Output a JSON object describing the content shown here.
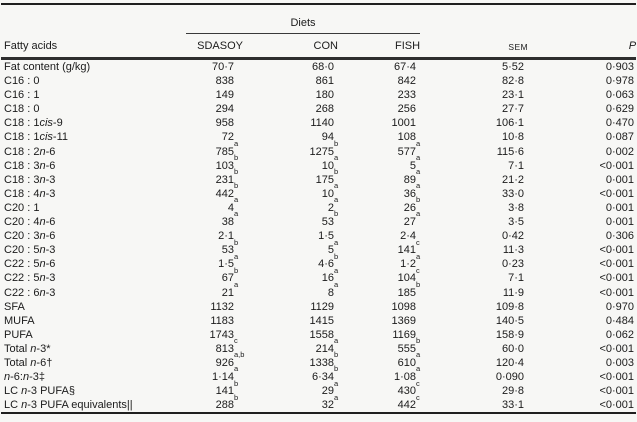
{
  "table": {
    "spanner_label": "Diets",
    "columns": {
      "fatty_acids": "Fatty acids",
      "sdasoy": "SDASOY",
      "con": "CON",
      "fish": "FISH",
      "sem": "SEM",
      "p": "P"
    },
    "rows": [
      {
        "label": "Fat content (g/kg)",
        "cells": [
          "70·7",
          "68·0",
          "67·4",
          "5·52",
          "0·903"
        ]
      },
      {
        "label": "C16 : 0",
        "cells": [
          "838",
          "861",
          "842",
          "82·8",
          "0·978"
        ]
      },
      {
        "label": "C16 : 1",
        "cells": [
          "149",
          "180",
          "233",
          "23·1",
          "0·063"
        ]
      },
      {
        "label": "C18 : 0",
        "cells": [
          "294",
          "268",
          "256",
          "27·7",
          "0·629"
        ]
      },
      {
        "label": "C18 : 1<i>cis</i>-9",
        "cells": [
          "958",
          "1140",
          "1001",
          "106·1",
          "0·470"
        ]
      },
      {
        "label": "C18 : 1<i>cis</i>-11",
        "cells": [
          "72",
          "94",
          "108",
          "10·8",
          "0·087"
        ]
      },
      {
        "label": "C18 : 2<i>n</i>-6",
        "cells": [
          "785^a",
          "1275^b",
          "577^a",
          "115·6",
          "0·002"
        ]
      },
      {
        "label": "C18 : 3<i>n</i>-6",
        "cells": [
          "103^b",
          "10^a",
          "5^a",
          "7·1",
          "<0·001"
        ]
      },
      {
        "label": "C18 : 3<i>n</i>-3",
        "cells": [
          "231^b",
          "175^b",
          "89^a",
          "21·2",
          "0·001"
        ]
      },
      {
        "label": "C18 : 4<i>n</i>-3",
        "cells": [
          "442^b",
          "10^a",
          "36^a",
          "33·0",
          "<0·001"
        ]
      },
      {
        "label": "C20 : 1",
        "cells": [
          "4^a",
          "2^a",
          "26^b",
          "3·8",
          "0·001"
        ]
      },
      {
        "label": "C20 : 4<i>n</i>-6",
        "cells": [
          "38^a",
          "53^b",
          "27^a",
          "3·5",
          "0·001"
        ]
      },
      {
        "label": "C20 : 3<i>n</i>-6",
        "cells": [
          "2·1",
          "1·5",
          "2·4",
          "0·42",
          "0·306"
        ]
      },
      {
        "label": "C20 : 5<i>n</i>-3",
        "cells": [
          "53^b",
          "5^a",
          "141^c",
          "11·3",
          "<0·001"
        ]
      },
      {
        "label": "C22 : 5<i>n</i>-6",
        "cells": [
          "1·5^a",
          "4·6^b",
          "1·2^a",
          "0·23",
          "<0·001"
        ]
      },
      {
        "label": "C22 : 5<i>n</i>-3",
        "cells": [
          "67^b",
          "16^a",
          "104^c",
          "7·1",
          "<0·001"
        ]
      },
      {
        "label": "C22 : 6<i>n</i>-3",
        "cells": [
          "21^a",
          "8^a",
          "185^b",
          "11·9",
          "<0·001"
        ]
      },
      {
        "label": "SFA",
        "cells": [
          "1132",
          "1129",
          "1098",
          "109·8",
          "0·970"
        ]
      },
      {
        "label": "MUFA",
        "cells": [
          "1183",
          "1415",
          "1369",
          "140·5",
          "0·484"
        ]
      },
      {
        "label": "PUFA",
        "cells": [
          "1743",
          "1558",
          "1169",
          "158·9",
          "0·062"
        ]
      },
      {
        "label": "Total <i>n</i>-3*",
        "cells": [
          "813^c",
          "214^a",
          "555^b",
          "60·0",
          "<0·001"
        ]
      },
      {
        "label": "Total <i>n</i>-6†",
        "cells": [
          "926^a,b",
          "1338^b",
          "610^a",
          "120·4",
          "0·003"
        ]
      },
      {
        "label": "<i>n</i>-6:<i>n</i>-3‡",
        "cells": [
          "1·14^a",
          "6·34^b",
          "1·08^a",
          "0·090",
          "<0·001"
        ]
      },
      {
        "label": "LC <i>n</i>-3 PUFA§",
        "cells": [
          "141^b",
          "29^a",
          "430^c",
          "29·8",
          "<0·001"
        ]
      },
      {
        "label": "LC <i>n</i>-3 PUFA equivalents||",
        "cells": [
          "288^b",
          "32^a",
          "442^c",
          "33·1",
          "<0·001"
        ]
      }
    ]
  }
}
